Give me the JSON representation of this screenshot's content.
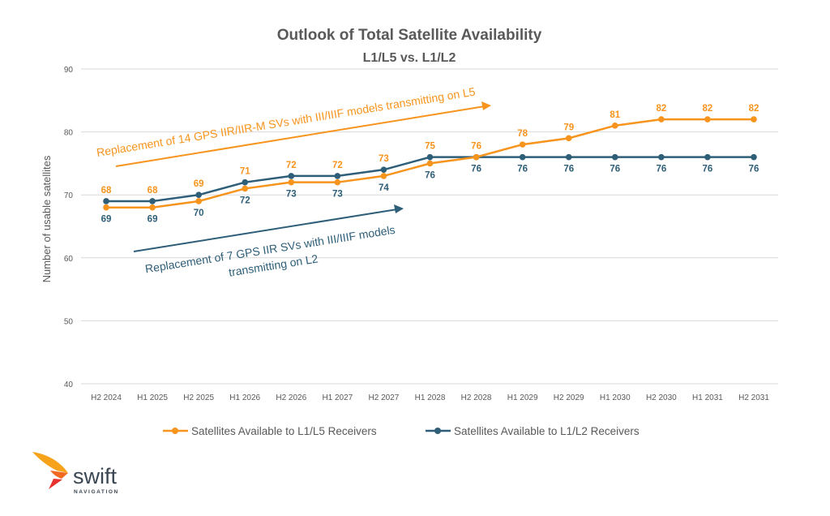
{
  "chart_data": {
    "type": "line",
    "title": "Outlook of Total Satellite Availability",
    "subtitle": "L1/L5 vs. L1/L2",
    "xlabel": "",
    "ylabel": "Number of usable satellites",
    "ylim": [
      40,
      90
    ],
    "yticks": [
      40,
      50,
      60,
      70,
      80,
      90
    ],
    "grid": true,
    "legend_position": "bottom",
    "categories": [
      "H2 2024",
      "H1 2025",
      "H2 2025",
      "H1 2026",
      "H2 2026",
      "H1 2027",
      "H2 2027",
      "H1 2028",
      "H2 2028",
      "H1 2029",
      "H2 2029",
      "H1 2030",
      "H2 2030",
      "H1 2031",
      "H2 2031"
    ],
    "series": [
      {
        "name": "Satellites Available to L1/L5 Receivers",
        "color": "#F7941D",
        "values": [
          68,
          68,
          69,
          71,
          72,
          72,
          73,
          75,
          76,
          78,
          79,
          81,
          82,
          82,
          82
        ]
      },
      {
        "name": "Satellites Available to L1/L2 Receivers",
        "color": "#2E5E78",
        "values": [
          69,
          69,
          70,
          72,
          73,
          73,
          74,
          76,
          76,
          76,
          76,
          76,
          76,
          76,
          76
        ]
      }
    ],
    "annotations": [
      {
        "text": "Replacement of 14 GPS IIR/IIR-M SVs with III/IIIF models transmitting on L5",
        "color": "#F7941D"
      },
      {
        "lines": [
          "Replacement of 7 GPS IIR SVs with III/IIIF models",
          "transmitting on L2"
        ],
        "color": "#2E5E78"
      }
    ]
  },
  "logo": {
    "name": "swift",
    "tagline": "NAVIGATION"
  }
}
